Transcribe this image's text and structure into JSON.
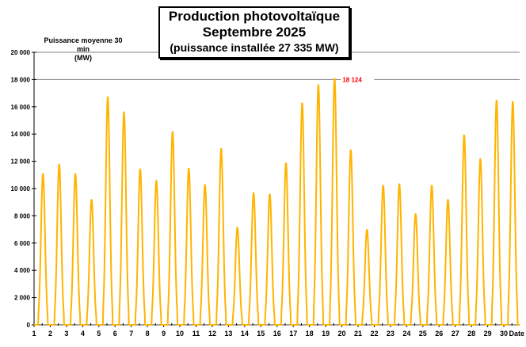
{
  "chart_data": {
    "type": "line",
    "title": "Production photovoltaïque",
    "subtitle": "Septembre 2025",
    "subtitle2": "(puissance installée 27 335 MW)",
    "ylabel": "Puissance moyenne 30 min",
    "yunit": "(MW)",
    "xlabel": "Date",
    "ylim": [
      0,
      20000
    ],
    "yticks": [
      "0",
      "2 000",
      "4 000",
      "6 000",
      "8 000",
      "10 000",
      "12 000",
      "14 000",
      "16 000",
      "18 000",
      "20 000"
    ],
    "xticks": [
      "1",
      "2",
      "3",
      "4",
      "5",
      "6",
      "7",
      "8",
      "9",
      "10",
      "11",
      "12",
      "13",
      "14",
      "15",
      "16",
      "17",
      "18",
      "19",
      "20",
      "21",
      "22",
      "23",
      "24",
      "25",
      "26",
      "27",
      "28",
      "29",
      "30"
    ],
    "grid_lines": [
      18000,
      20000
    ],
    "series_color": "#FFB400",
    "daily_peaks": [
      11100,
      11800,
      11100,
      9200,
      16750,
      15650,
      11450,
      10600,
      14200,
      11500,
      10300,
      12950,
      7150,
      9700,
      9600,
      11900,
      16300,
      17650,
      18124,
      12850,
      7000,
      10250,
      10350,
      8150,
      10250,
      9200,
      13950,
      12200,
      16500,
      16400
    ],
    "annotation": {
      "day": 19,
      "value": 18124,
      "label": "18 124",
      "color": "#FF0000"
    }
  }
}
